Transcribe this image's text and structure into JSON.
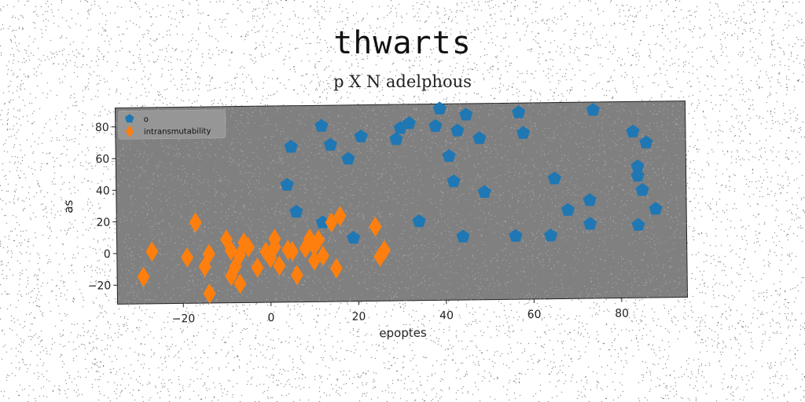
{
  "title": "thwarts",
  "subtitle": "p X N adelphous",
  "chart_data": {
    "type": "scatter",
    "xlabel": "epoptes",
    "ylabel": "as",
    "xlim": [
      -35,
      95
    ],
    "ylim": [
      -32,
      92
    ],
    "xticks": [
      -20,
      0,
      20,
      40,
      60,
      80
    ],
    "yticks": [
      -20,
      0,
      20,
      40,
      60,
      80
    ],
    "grid": false,
    "legend_position": "top-left",
    "plot_background": "#808080",
    "series": [
      {
        "name": "o",
        "marker": "pentagon",
        "color": "#1f77b4",
        "points": [
          [
            5,
            66
          ],
          [
            4,
            42
          ],
          [
            6,
            25
          ],
          [
            12,
            79
          ],
          [
            14,
            67
          ],
          [
            12,
            18
          ],
          [
            18,
            58
          ],
          [
            19,
            8
          ],
          [
            21,
            72
          ],
          [
            29,
            70
          ],
          [
            30,
            77
          ],
          [
            32,
            80
          ],
          [
            34,
            18
          ],
          [
            38,
            78
          ],
          [
            39,
            89
          ],
          [
            41,
            59
          ],
          [
            42,
            43
          ],
          [
            43,
            75
          ],
          [
            44,
            8
          ],
          [
            45,
            85
          ],
          [
            48,
            70
          ],
          [
            49,
            36
          ],
          [
            56,
            8
          ],
          [
            57,
            86
          ],
          [
            58,
            73
          ],
          [
            64,
            8
          ],
          [
            65,
            44
          ],
          [
            68,
            24
          ],
          [
            73,
            30
          ],
          [
            73,
            15
          ],
          [
            74,
            87
          ],
          [
            83,
            73
          ],
          [
            84,
            14
          ],
          [
            84,
            51
          ],
          [
            84,
            45
          ],
          [
            85,
            36
          ],
          [
            86,
            66
          ],
          [
            88,
            24
          ]
        ]
      },
      {
        "name": "intransmutability",
        "marker": "diamond",
        "color": "#ff7f0e",
        "points": [
          [
            -29,
            -15
          ],
          [
            -27,
            1
          ],
          [
            -19,
            -3
          ],
          [
            -17,
            19
          ],
          [
            -15,
            -9
          ],
          [
            -14,
            -1
          ],
          [
            -14,
            -26
          ],
          [
            -10,
            8
          ],
          [
            -9,
            1
          ],
          [
            -9,
            -15
          ],
          [
            -8,
            -9
          ],
          [
            -7,
            -2
          ],
          [
            -7,
            -20
          ],
          [
            -6,
            6
          ],
          [
            -5,
            3
          ],
          [
            -3,
            -10
          ],
          [
            -1,
            0
          ],
          [
            0,
            -4
          ],
          [
            1,
            3
          ],
          [
            1,
            8
          ],
          [
            2,
            -9
          ],
          [
            4,
            1
          ],
          [
            5,
            0
          ],
          [
            6,
            -15
          ],
          [
            8,
            2
          ],
          [
            9,
            8
          ],
          [
            10,
            3
          ],
          [
            10,
            -6
          ],
          [
            11,
            7
          ],
          [
            12,
            -3
          ],
          [
            14,
            18
          ],
          [
            15,
            -11
          ],
          [
            16,
            22
          ],
          [
            24,
            15
          ],
          [
            25,
            -4
          ],
          [
            26,
            0
          ]
        ]
      }
    ]
  }
}
